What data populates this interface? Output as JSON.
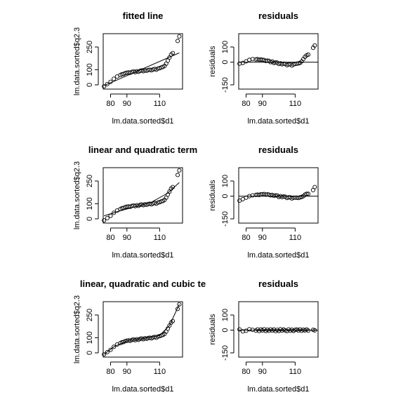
{
  "chart_data": [
    {
      "type": "scatter",
      "title": "fitted line",
      "xlabel": "lm.data.sorted$d1",
      "ylabel": "lm.data.sorted$q2.3",
      "x": [
        76,
        78,
        80,
        82,
        84,
        86,
        87,
        88,
        89,
        90,
        91,
        92,
        93,
        94,
        95,
        96,
        97,
        98,
        99,
        100,
        101,
        102,
        103,
        104,
        105,
        106,
        107,
        108,
        109,
        110,
        111,
        112,
        113,
        114,
        115,
        116,
        117,
        118,
        121,
        122
      ],
      "y": [
        -10,
        5,
        20,
        40,
        55,
        65,
        70,
        72,
        78,
        80,
        82,
        80,
        85,
        88,
        84,
        90,
        86,
        92,
        95,
        90,
        96,
        93,
        98,
        100,
        96,
        102,
        105,
        100,
        108,
        110,
        115,
        118,
        125,
        140,
        160,
        180,
        200,
        210,
        290,
        320
      ],
      "line": {
        "x": [
          76,
          122
        ],
        "y": [
          -5,
          211
        ]
      },
      "xlim": [
        75.5,
        124
      ],
      "ylim": [
        -28,
        338
      ],
      "xticks": [
        80,
        90,
        110
      ],
      "yticks": [
        0,
        100,
        250
      ]
    },
    {
      "type": "scatter",
      "title": "residuals",
      "xlabel": "lm.data.sorted$d1",
      "ylabel": "residuals",
      "x": [
        76,
        78,
        80,
        82,
        84,
        86,
        87,
        88,
        89,
        90,
        91,
        92,
        93,
        94,
        95,
        96,
        97,
        98,
        99,
        100,
        101,
        102,
        103,
        104,
        105,
        106,
        107,
        108,
        109,
        110,
        111,
        112,
        113,
        114,
        115,
        116,
        117,
        118,
        121,
        122
      ],
      "y": [
        -10,
        -5,
        5,
        15,
        20,
        18,
        20,
        15,
        18,
        15,
        14,
        8,
        10,
        8,
        0,
        4,
        -5,
        -2,
        -3,
        -12,
        -8,
        -14,
        -10,
        -12,
        -20,
        -15,
        -14,
        -22,
        -15,
        -12,
        -10,
        -8,
        -5,
        5,
        20,
        35,
        45,
        50,
        95,
        110
      ],
      "hline": 0,
      "xlim": [
        75.5,
        124
      ],
      "ylim": [
        -178,
        188
      ],
      "xticks": [
        80,
        90,
        110
      ],
      "yticks": [
        -150,
        0,
        100
      ]
    },
    {
      "type": "scatter",
      "title": "linear and quadratic term",
      "xlabel": "lm.data.sorted$d1",
      "ylabel": "lm.data.sorted$q2.3",
      "x": [
        76,
        78,
        80,
        82,
        84,
        86,
        87,
        88,
        89,
        90,
        91,
        92,
        93,
        94,
        95,
        96,
        97,
        98,
        99,
        100,
        101,
        102,
        103,
        104,
        105,
        106,
        107,
        108,
        109,
        110,
        111,
        112,
        113,
        114,
        115,
        116,
        117,
        118,
        121,
        122
      ],
      "y": [
        -10,
        5,
        20,
        40,
        55,
        65,
        70,
        72,
        78,
        80,
        82,
        80,
        85,
        88,
        84,
        90,
        86,
        92,
        95,
        90,
        96,
        93,
        98,
        100,
        96,
        102,
        105,
        100,
        108,
        110,
        115,
        118,
        125,
        140,
        160,
        180,
        200,
        210,
        290,
        320
      ],
      "line": {
        "x": [
          76,
          85,
          95,
          105,
          115,
          122
        ],
        "y": [
          20,
          50,
          80,
          110,
          170,
          240
        ]
      },
      "xlim": [
        75.5,
        124
      ],
      "ylim": [
        -28,
        338
      ],
      "xticks": [
        80,
        90,
        110
      ],
      "yticks": [
        0,
        100,
        250
      ]
    },
    {
      "type": "scatter",
      "title": "residuals",
      "xlabel": "lm.data.sorted$d1",
      "ylabel": "residuals",
      "x": [
        76,
        78,
        80,
        82,
        84,
        86,
        87,
        88,
        89,
        90,
        91,
        92,
        93,
        94,
        95,
        96,
        97,
        98,
        99,
        100,
        101,
        102,
        103,
        104,
        105,
        106,
        107,
        108,
        109,
        110,
        111,
        112,
        113,
        114,
        115,
        116,
        117,
        118,
        121,
        122
      ],
      "y": [
        -30,
        -20,
        -10,
        0,
        5,
        8,
        10,
        8,
        12,
        12,
        14,
        10,
        12,
        10,
        5,
        8,
        2,
        5,
        4,
        -5,
        0,
        -6,
        -2,
        -4,
        -12,
        -8,
        -8,
        -15,
        -10,
        -10,
        -10,
        -12,
        -8,
        -5,
        0,
        10,
        15,
        15,
        40,
        60
      ],
      "hline": 0,
      "xlim": [
        75.5,
        124
      ],
      "ylim": [
        -178,
        188
      ],
      "xticks": [
        80,
        90,
        110
      ],
      "yticks": [
        -150,
        0,
        100
      ]
    },
    {
      "type": "scatter",
      "title": "linear, quadratic and cubic te",
      "xlabel": "lm.data.sorted$d1",
      "ylabel": "lm.data.sorted$q2.3",
      "x": [
        76,
        78,
        80,
        82,
        84,
        86,
        87,
        88,
        89,
        90,
        91,
        92,
        93,
        94,
        95,
        96,
        97,
        98,
        99,
        100,
        101,
        102,
        103,
        104,
        105,
        106,
        107,
        108,
        109,
        110,
        111,
        112,
        113,
        114,
        115,
        116,
        117,
        118,
        121,
        122
      ],
      "y": [
        -10,
        5,
        20,
        40,
        55,
        65,
        70,
        72,
        78,
        80,
        82,
        80,
        85,
        88,
        84,
        90,
        86,
        92,
        95,
        90,
        96,
        93,
        98,
        100,
        96,
        102,
        105,
        100,
        108,
        110,
        115,
        118,
        125,
        140,
        160,
        180,
        200,
        210,
        290,
        320
      ],
      "line": {
        "x": [
          76,
          82,
          90,
          100,
          110,
          116,
          122
        ],
        "y": [
          -10,
          40,
          80,
          95,
          115,
          180,
          320
        ]
      },
      "xlim": [
        75.5,
        124
      ],
      "ylim": [
        -28,
        338
      ],
      "xticks": [
        80,
        90,
        110
      ],
      "yticks": [
        0,
        100,
        250
      ]
    },
    {
      "type": "scatter",
      "title": "residuals",
      "xlabel": "lm.data.sorted$d1",
      "ylabel": "residuals",
      "x": [
        76,
        78,
        80,
        82,
        84,
        86,
        87,
        88,
        89,
        90,
        91,
        92,
        93,
        94,
        95,
        96,
        97,
        98,
        99,
        100,
        101,
        102,
        103,
        104,
        105,
        106,
        107,
        108,
        109,
        110,
        111,
        112,
        113,
        114,
        115,
        116,
        117,
        118,
        121,
        122
      ],
      "y": [
        5,
        -8,
        -4,
        6,
        2,
        -3,
        5,
        -6,
        4,
        -2,
        6,
        -5,
        3,
        -4,
        5,
        -3,
        4,
        -6,
        2,
        -5,
        6,
        -3,
        4,
        -2,
        -6,
        5,
        -4,
        3,
        -5,
        2,
        4,
        -3,
        5,
        -4,
        3,
        -2,
        4,
        -3,
        2,
        -1
      ],
      "hline": 0,
      "xlim": [
        75.5,
        124
      ],
      "ylim": [
        -178,
        188
      ],
      "xticks": [
        80,
        90,
        110
      ],
      "yticks": [
        -150,
        0,
        100
      ]
    }
  ]
}
